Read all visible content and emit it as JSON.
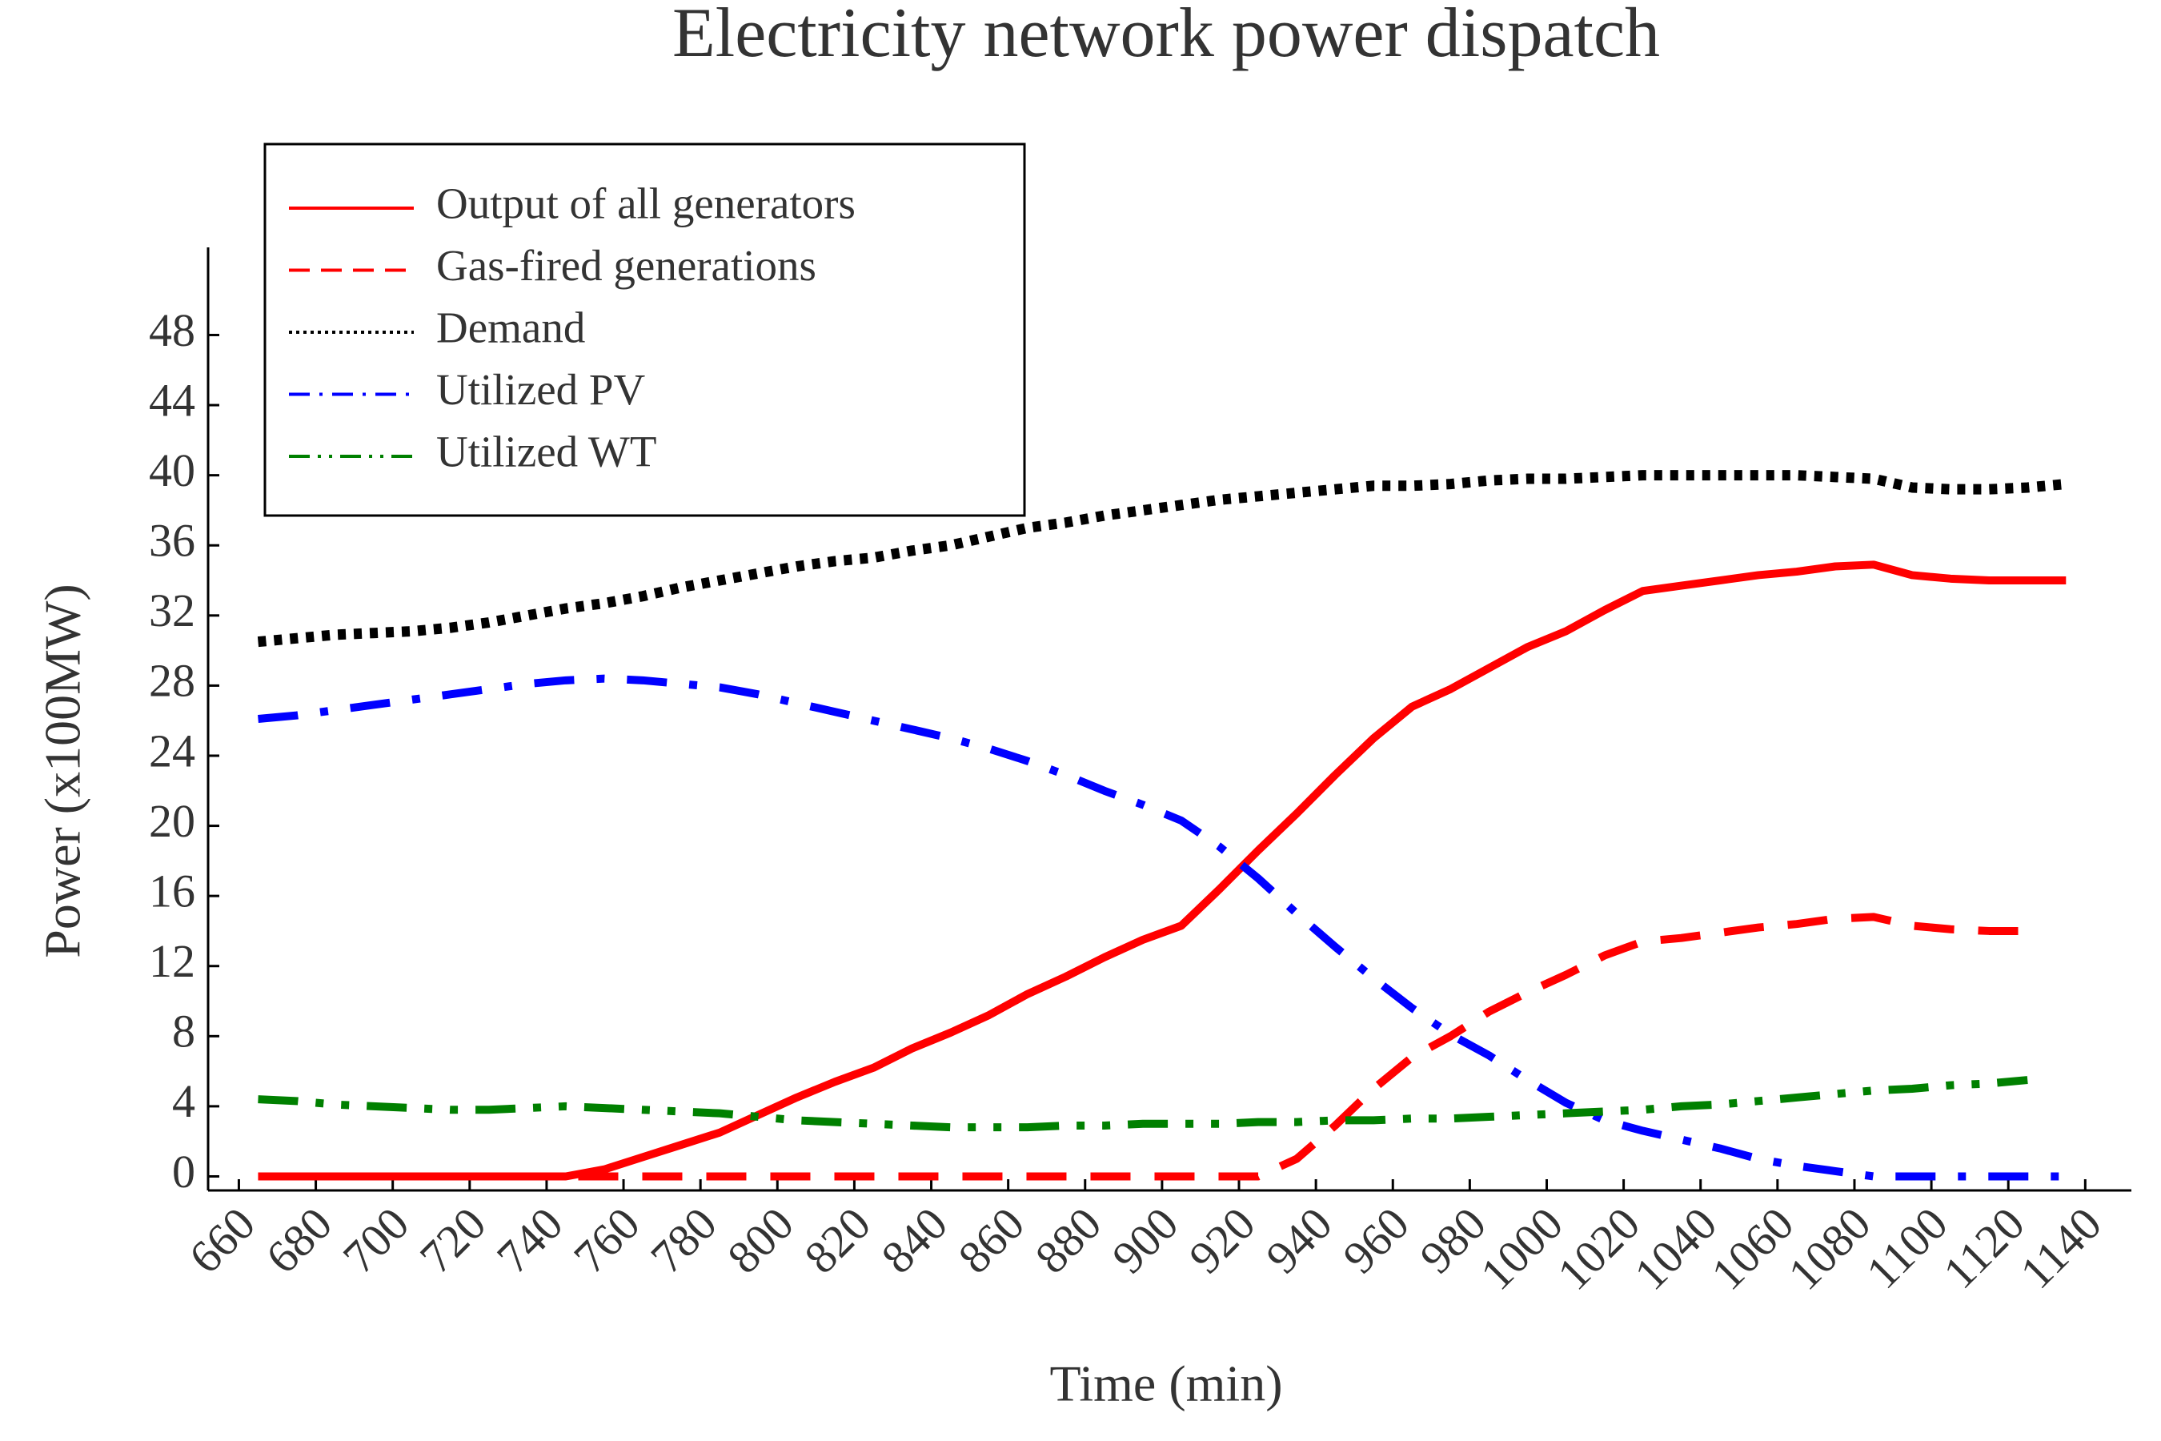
{
  "chart_data": {
    "type": "line",
    "title": "Electricity network power dispatch",
    "x_label": "Time (min)",
    "y_label": "Power (x100MW)",
    "x": [
      665,
      675,
      685,
      695,
      705,
      715,
      725,
      735,
      745,
      755,
      765,
      775,
      785,
      795,
      805,
      815,
      825,
      835,
      845,
      855,
      865,
      875,
      885,
      895,
      905,
      915,
      925,
      935,
      945,
      955,
      965,
      975,
      985,
      995,
      1005,
      1015,
      1025,
      1035,
      1045,
      1055,
      1065,
      1075,
      1085,
      1095,
      1105,
      1115,
      1125,
      1135
    ],
    "series": [
      {
        "name": "Output of all generators",
        "color": "#ff0000",
        "style": "solid",
        "values": [
          0,
          0,
          0,
          0,
          0,
          0,
          0,
          0,
          0,
          0.4,
          1.1,
          1.8,
          2.5,
          3.5,
          4.5,
          5.4,
          6.2,
          7.3,
          8.2,
          9.2,
          10.4,
          11.4,
          12.5,
          13.5,
          14.3,
          16.4,
          18.6,
          20.7,
          22.9,
          25.0,
          26.8,
          27.8,
          29.0,
          30.2,
          31.1,
          32.3,
          33.4,
          33.7,
          34.0,
          34.3,
          34.5,
          34.8,
          34.9,
          34.3,
          34.1,
          34.0,
          34.0,
          34.0
        ]
      },
      {
        "name": "Gas-fired generations",
        "color": "#ff0000",
        "style": "dashed",
        "values": [
          0,
          0,
          0,
          0,
          0,
          0,
          0,
          0,
          0,
          0,
          0,
          0,
          0,
          0,
          0,
          0,
          0,
          0,
          0,
          0,
          0,
          0,
          0,
          0,
          0,
          0,
          0,
          1,
          2.9,
          5,
          6.8,
          8.0,
          9.4,
          10.5,
          11.5,
          12.6,
          13.4,
          13.6,
          13.9,
          14.2,
          14.4,
          14.7,
          14.8,
          14.3,
          14.1,
          14.0,
          14.0,
          null
        ]
      },
      {
        "name": "Demand",
        "color": "#000000",
        "style": "dotted",
        "values": [
          30.5,
          30.7,
          30.9,
          31.0,
          31.1,
          31.3,
          31.6,
          32.0,
          32.4,
          32.7,
          33.1,
          33.6,
          34.0,
          34.4,
          34.8,
          35.1,
          35.3,
          35.7,
          36.0,
          36.5,
          37.0,
          37.3,
          37.7,
          38.0,
          38.3,
          38.6,
          38.8,
          39.0,
          39.2,
          39.4,
          39.4,
          39.5,
          39.7,
          39.8,
          39.8,
          39.9,
          40.0,
          40.0,
          40.0,
          40.0,
          40.0,
          39.9,
          39.8,
          39.3,
          39.2,
          39.2,
          39.3,
          39.5
        ]
      },
      {
        "name": "Utilized PV",
        "color": "#0000ff",
        "style": "dashdot",
        "values": [
          26.1,
          26.3,
          26.6,
          26.9,
          27.2,
          27.5,
          27.8,
          28.1,
          28.3,
          28.4,
          28.3,
          28.1,
          27.9,
          27.5,
          27.0,
          26.5,
          26.0,
          25.5,
          25.0,
          24.4,
          23.7,
          22.9,
          22.0,
          21.2,
          20.3,
          18.8,
          17.0,
          15.0,
          13.1,
          11.3,
          9.6,
          8.1,
          6.9,
          5.5,
          4.2,
          3.2,
          2.6,
          2.1,
          1.6,
          1.0,
          0.6,
          0.3,
          0,
          0,
          0,
          0,
          0,
          0
        ]
      },
      {
        "name": "Utilized WT",
        "color": "#008000",
        "style": "dashdotdot",
        "values": [
          4.4,
          4.3,
          4.1,
          4.0,
          3.9,
          3.8,
          3.8,
          3.9,
          4.0,
          3.9,
          3.8,
          3.7,
          3.6,
          3.4,
          3.2,
          3.1,
          3.0,
          2.9,
          2.8,
          2.8,
          2.8,
          2.9,
          2.9,
          3.0,
          3.0,
          3.0,
          3.1,
          3.1,
          3.2,
          3.2,
          3.3,
          3.3,
          3.4,
          3.5,
          3.6,
          3.7,
          3.8,
          4.0,
          4.1,
          4.3,
          4.5,
          4.7,
          4.9,
          5.0,
          5.2,
          5.3,
          5.5,
          null
        ]
      }
    ],
    "xlim": [
      652,
      1152
    ],
    "ylim": [
      -0.8,
      53
    ],
    "xticks": [
      660,
      680,
      700,
      720,
      740,
      760,
      780,
      800,
      820,
      840,
      860,
      880,
      900,
      920,
      940,
      960,
      980,
      1000,
      1020,
      1040,
      1060,
      1080,
      1100,
      1120,
      1140
    ],
    "yticks": [
      0,
      4,
      8,
      12,
      16,
      20,
      24,
      28,
      32,
      36,
      40,
      44,
      48
    ],
    "legend": "upper left",
    "grid": false
  }
}
